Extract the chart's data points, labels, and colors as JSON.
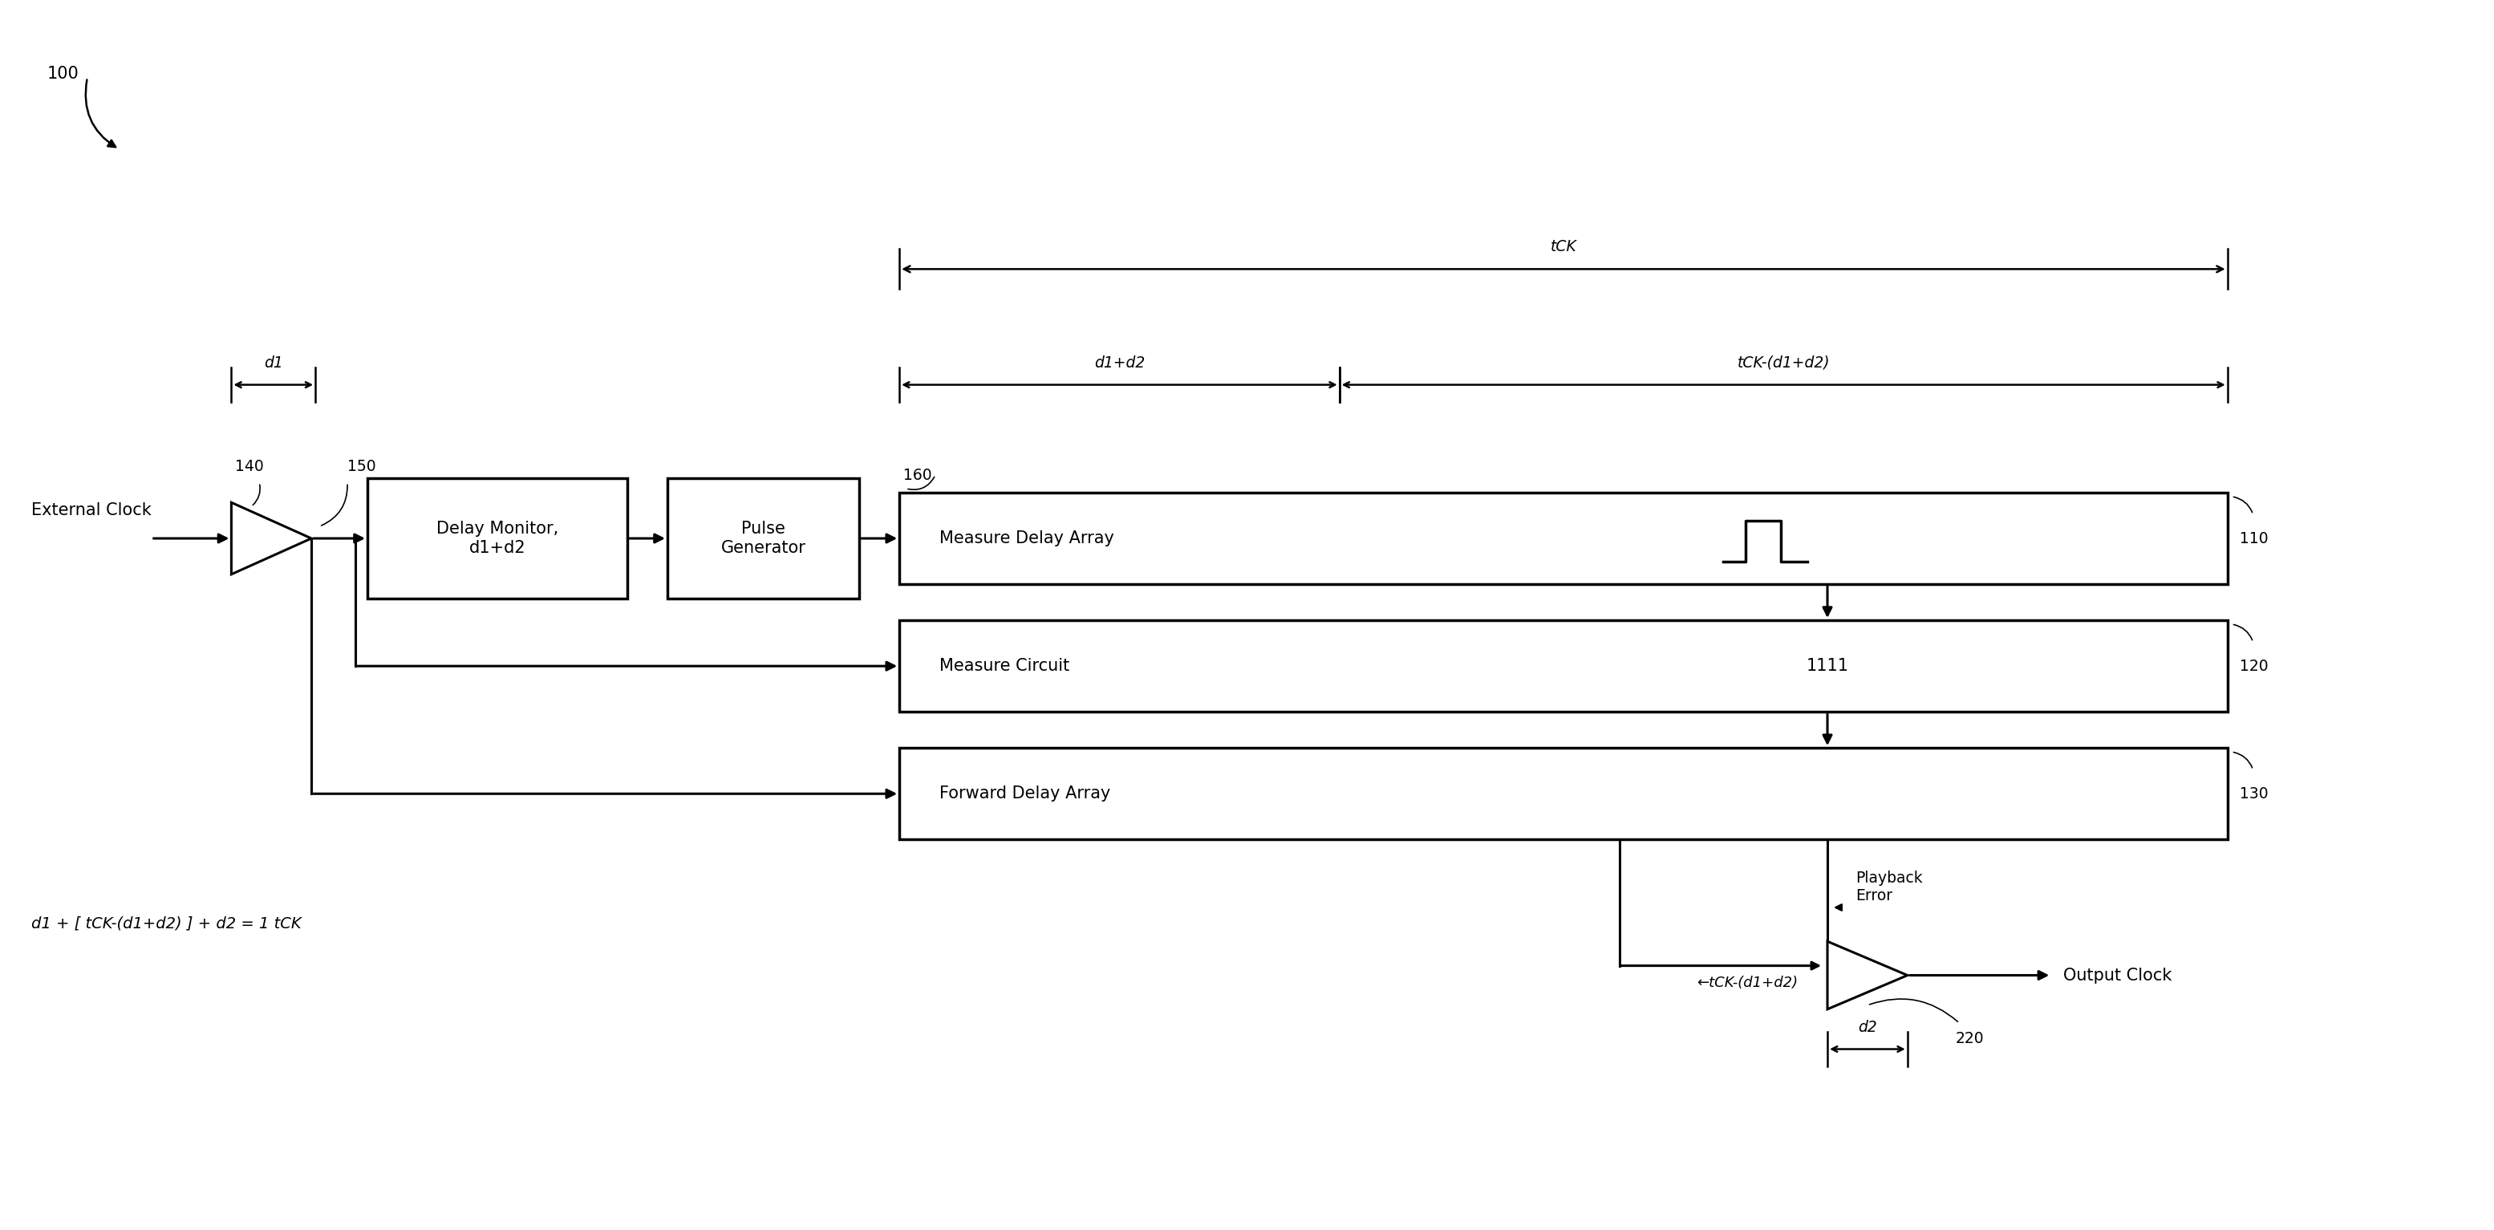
{
  "background_color": "#ffffff",
  "fig_width": 31.09,
  "fig_height": 15.33,
  "label_100": "100",
  "label_140": "140",
  "label_150": "150",
  "label_160": "160",
  "label_110": "110",
  "label_120": "120",
  "label_130": "130",
  "label_220": "220",
  "text_ext_clk": "External Clock",
  "text_delay_monitor": "Delay Monitor,\nd1+d2",
  "text_pulse_gen": "Pulse\nGenerator",
  "text_measure_delay": "Measure Delay Array",
  "text_measure_circuit": "Measure Circuit",
  "text_forward_delay": "Forward Delay Array",
  "text_output_clk": "Output Clock",
  "text_1111": "1111",
  "text_tCK": "tCK",
  "text_d1d2": "d1+d2",
  "text_d1": "d1",
  "text_tCK_d1d2": "tCK-(d1+d2)",
  "text_d2": "d2",
  "text_playback_error": "Playback\nError",
  "text_equation": "d1 + [ tCK-(d1+d2) ] + d2 = 1 tCK",
  "text_tCK_d1d2_label2": "tCK-(d1+d2)"
}
